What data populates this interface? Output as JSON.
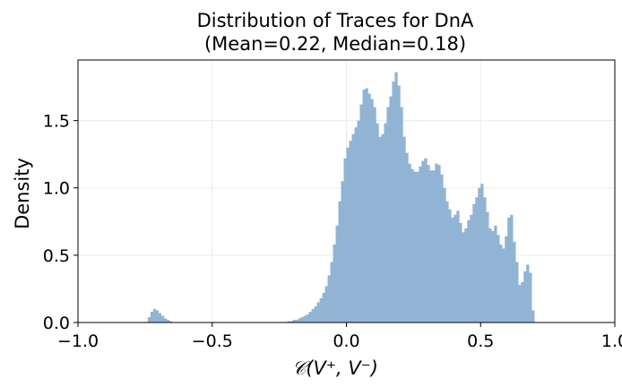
{
  "chart_data": {
    "type": "histogram",
    "title_line1": "Distribution of Traces for DnA",
    "title_line2": "(Mean=0.22, Median=0.18)",
    "xlabel": "𝒞(V⁺, V⁻)",
    "ylabel": "Density",
    "xlim": [
      -1.0,
      1.0
    ],
    "ylim": [
      0.0,
      1.95
    ],
    "xticks": [
      -1.0,
      -0.5,
      0.0,
      0.5,
      1.0
    ],
    "xtick_labels": [
      "−1.0",
      "−0.5",
      "0.0",
      "0.5",
      "1.0"
    ],
    "yticks": [
      0.0,
      0.5,
      1.0,
      1.5
    ],
    "ytick_labels": [
      "0.0",
      "0.5",
      "1.0",
      "1.5"
    ],
    "grid": true,
    "bar_color": "#92b4d4",
    "bins": {
      "start": -0.74,
      "width": 0.01,
      "densities": [
        0.04,
        0.08,
        0.1,
        0.09,
        0.07,
        0.05,
        0.03,
        0.02,
        0.01,
        0.0,
        0.0,
        0.0,
        0.0,
        0.0,
        0.0,
        0.0,
        0.0,
        0.0,
        0.0,
        0.0,
        0.0,
        0.0,
        0.0,
        0.0,
        0.0,
        0.0,
        0.0,
        0.0,
        0.0,
        0.0,
        0.0,
        0.0,
        0.0,
        0.0,
        0.0,
        0.0,
        0.0,
        0.0,
        0.0,
        0.0,
        0.0,
        0.0,
        0.0,
        0.0,
        0.0,
        0.0,
        0.0,
        0.0,
        0.0,
        0.0,
        0.0,
        0.0,
        0.01,
        0.01,
        0.02,
        0.02,
        0.03,
        0.04,
        0.05,
        0.06,
        0.08,
        0.1,
        0.12,
        0.15,
        0.18,
        0.22,
        0.27,
        0.35,
        0.45,
        0.58,
        0.72,
        0.9,
        1.05,
        1.22,
        1.3,
        1.35,
        1.4,
        1.45,
        1.5,
        1.62,
        1.73,
        1.74,
        1.7,
        1.66,
        1.6,
        1.48,
        1.38,
        1.4,
        1.48,
        1.6,
        1.68,
        1.79,
        1.86,
        1.76,
        1.6,
        1.38,
        1.26,
        1.18,
        1.14,
        1.12,
        1.12,
        1.16,
        1.2,
        1.22,
        1.17,
        1.13,
        1.13,
        1.18,
        1.17,
        1.1,
        1.0,
        0.9,
        0.84,
        0.78,
        0.8,
        0.83,
        0.74,
        0.67,
        0.7,
        0.76,
        0.8,
        0.88,
        0.93,
        1.0,
        1.03,
        0.93,
        0.82,
        0.7,
        0.68,
        0.72,
        0.65,
        0.58,
        0.55,
        0.64,
        0.78,
        0.8,
        0.6,
        0.45,
        0.28,
        0.3,
        0.38,
        0.43,
        0.37,
        0.09
      ]
    }
  }
}
